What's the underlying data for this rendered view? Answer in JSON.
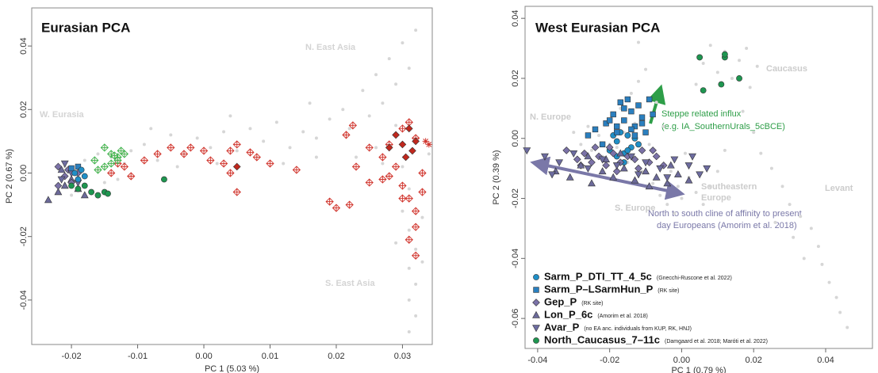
{
  "chart_data": [
    {
      "type": "scatter",
      "title": "Eurasian PCA",
      "x_label": "PC 1 (5.03 %)",
      "y_label": "PC 2 (0.67 %)",
      "xlim": [
        -0.026,
        0.0345
      ],
      "ylim": [
        -0.054,
        0.052
      ],
      "xticks": [
        -0.02,
        -0.01,
        {
          "value": 0,
          "label": "0.00"
        },
        0.01,
        0.02,
        0.03
      ],
      "yticks": [
        -0.04,
        -0.02,
        {
          "value": 0,
          "label": "0.00"
        },
        0.02,
        0.04
      ],
      "annotations": [
        {
          "text": "W. Eurasia",
          "color": "#d4d4d4"
        },
        {
          "text": "N. East Asia",
          "color": "#d4d4d4"
        },
        {
          "text": "S. East Asia",
          "color": "#d4d4d4"
        }
      ],
      "series": [
        {
          "color": "#d6d6d6",
          "marker": "dot",
          "x": [
            -0.021,
            -0.019,
            -0.018,
            -0.017,
            -0.016,
            -0.015,
            -0.014,
            -0.013,
            -0.012,
            -0.02,
            -0.016,
            -0.018,
            -0.011,
            -0.009,
            -0.007,
            -0.005,
            -0.003,
            -0.001,
            0.001,
            0.003,
            0.005,
            0.007,
            0.009,
            0.011,
            0.013,
            0.015,
            0.017,
            0.019,
            0.021,
            0.022,
            0.024,
            0.025,
            0.026,
            0.027,
            0.028,
            0.029,
            0.03,
            0.031,
            0.032,
            0.029,
            0.026,
            0.023,
            0.03,
            0.031,
            0.03,
            0.031,
            0.032,
            0.031,
            0.032,
            0.031,
            0.032,
            0.031,
            0.033,
            0.029,
            0.033,
            -0.004,
            0.002,
            0.008,
            0.012,
            0.017,
            0.027,
            0.034,
            -0.008,
            0.004,
            0.016
          ],
          "values": [
            0.002,
            -0.004,
            0.004,
            -0.006,
            0.001,
            -0.003,
            0.005,
            -0.002,
            0.003,
            -0.007,
            0.006,
            -0.001,
            0.007,
            0.009,
            0.004,
            0.012,
            0.006,
            0.011,
            0.008,
            0.013,
            0.007,
            0.014,
            0.01,
            0.016,
            0.008,
            0.013,
            0.011,
            0.017,
            0.02,
            0.014,
            0.026,
            0.018,
            0.031,
            0.022,
            0.036,
            0.028,
            0.041,
            0.033,
            0.045,
            0.015,
            0.008,
            0.005,
            0.002,
            -0.005,
            -0.012,
            -0.018,
            -0.024,
            -0.03,
            -0.035,
            -0.04,
            -0.045,
            -0.05,
            -0.028,
            -0.022,
            -0.014,
            0.002,
            0.003,
            0.005,
            0.003,
            0.005,
            0.003,
            0.006,
            0.014,
            0.018,
            0.022
          ]
        },
        {
          "color": "#d0342c",
          "marker": "diamond-cross",
          "x": [
            -0.014,
            -0.013,
            -0.011,
            -0.009,
            -0.007,
            -0.005,
            -0.003,
            -0.002,
            0.0,
            0.001,
            0.003,
            0.004,
            0.005,
            0.007,
            0.008,
            0.01,
            0.014,
            0.005,
            0.019,
            0.02,
            0.022,
            0.023,
            0.025,
            0.027,
            0.028,
            0.029,
            0.03,
            0.031,
            0.032,
            0.033,
            0.028,
            0.03,
            0.031,
            0.032,
            0.033,
            0.032,
            0.031,
            0.03,
            0.032,
            0.027,
            0.025,
            -0.012,
            0.004,
            0.0215,
            0.0225
          ],
          "values": [
            0.0,
            0.003,
            -0.001,
            0.004,
            0.006,
            0.008,
            0.006,
            0.008,
            0.007,
            0.004,
            0.003,
            0.007,
            0.009,
            0.0065,
            0.005,
            0.003,
            0.001,
            -0.006,
            -0.009,
            -0.011,
            -0.01,
            0.002,
            -0.003,
            0.005,
            -0.001,
            0.002,
            -0.004,
            -0.008,
            -0.012,
            -0.006,
            0.009,
            0.014,
            0.016,
            0.011,
            0.0,
            -0.017,
            -0.021,
            -0.008,
            -0.026,
            -0.002,
            0.008,
            0.002,
            0.0,
            0.012,
            0.015
          ]
        },
        {
          "color": "#3cb44b",
          "marker": "diamond-cross",
          "x": [
            -0.0165,
            -0.015,
            -0.014,
            -0.013,
            -0.012,
            -0.0125,
            -0.014,
            -0.0135,
            -0.015,
            -0.016,
            -0.013
          ],
          "values": [
            0.004,
            0.008,
            0.006,
            0.005,
            0.006,
            0.007,
            0.003,
            0.0055,
            0.002,
            0.001,
            0.004
          ]
        },
        {
          "color": "#c0281e",
          "marker": "diamond",
          "x": [
            0.029,
            0.03,
            0.031,
            0.0315,
            0.032,
            0.0305,
            0.005,
            0.028
          ],
          "values": [
            0.012,
            0.009,
            0.014,
            0.007,
            0.01,
            0.005,
            0.002,
            0.008
          ]
        },
        {
          "color": "#d0342c",
          "marker": "star",
          "x": [
            0.0335,
            0.034
          ],
          "values": [
            0.01,
            0.009
          ]
        },
        {
          "color": "#6c6a9a",
          "marker": "triangle-up",
          "x": [
            -0.0235,
            -0.022,
            -0.021,
            -0.02,
            -0.0215,
            -0.019,
            -0.018
          ],
          "values": [
            -0.0085,
            -0.006,
            -0.004,
            -0.002,
            0.001,
            -0.005,
            -0.007
          ]
        },
        {
          "color": "#7b72a8",
          "marker": "diamond",
          "x": [
            -0.022,
            -0.021,
            -0.0205,
            -0.02,
            -0.019,
            -0.022
          ],
          "values": [
            0.002,
            -0.001,
            0.001,
            -0.003,
            0,
            -0.004
          ]
        },
        {
          "color": "#6d6ca0",
          "marker": "triangle-down",
          "x": [
            -0.0215,
            -0.02,
            -0.019,
            -0.021
          ],
          "values": [
            -0.002,
            0.0,
            -0.003,
            0.003
          ]
        },
        {
          "color": "#2a7fbf",
          "marker": "square",
          "x": [
            -0.02,
            -0.019
          ],
          "values": [
            0.0015,
            0.002
          ]
        },
        {
          "color": "#1f8fc7",
          "marker": "circle",
          "x": [
            -0.0195,
            -0.0185,
            -0.018,
            -0.019
          ],
          "values": [
            0.0,
            0.001,
            -0.001,
            -0.002
          ]
        },
        {
          "color": "#1e9650",
          "marker": "circle",
          "x": [
            -0.02,
            -0.019,
            -0.018,
            -0.017,
            -0.016,
            -0.015,
            -0.0145,
            -0.006
          ],
          "values": [
            -0.004,
            -0.005,
            -0.004,
            -0.006,
            -0.007,
            -0.006,
            -0.0065,
            -0.002
          ]
        }
      ]
    },
    {
      "type": "scatter",
      "title": "West Eurasian PCA",
      "x_label": "PC 1 (0.79 %)",
      "y_label": "PC 2 (0.39 %)",
      "xlim": [
        -0.0435,
        0.053
      ],
      "ylim": [
        -0.07,
        0.044
      ],
      "xticks": [
        -0.04,
        -0.02,
        {
          "value": 0,
          "label": "0.00"
        },
        0.02,
        0.04
      ],
      "yticks": [
        -0.06,
        -0.04,
        -0.02,
        {
          "value": 0,
          "label": "0.00"
        },
        0.02,
        0.04
      ],
      "legend": "bottom-left",
      "annotations": [
        {
          "text": "N. Europe",
          "color": "#cccccc"
        },
        {
          "text": "Caucasus",
          "color": "#cccccc"
        },
        {
          "text": "Southeastern",
          "color": "#cccccc"
        },
        {
          "text": "Europe",
          "color": "#cccccc"
        },
        {
          "text": "S. Europe",
          "color": "#cccccc"
        },
        {
          "text": "Levant",
          "color": "#cccccc"
        },
        {
          "text": "Steppe related influx",
          "color": "#2e9e48"
        },
        {
          "text": "(e.g. IA_SouthernUrals_5cBCE)",
          "color": "#2e9e48"
        },
        {
          "text": "North to south cline of affinity to present",
          "color": "#7a78a8"
        },
        {
          "text": "day Europeans (Amorim et al. 2018)",
          "color": "#7a78a8"
        }
      ],
      "series": [
        {
          "color": "#d6d6d6",
          "marker": "dot",
          "x": [
            -0.03,
            -0.028,
            -0.026,
            -0.025,
            -0.023,
            -0.022,
            -0.021,
            -0.02,
            -0.019,
            -0.018,
            -0.017,
            -0.016,
            -0.015,
            -0.014,
            -0.013,
            -0.012,
            -0.011,
            -0.01,
            -0.009,
            -0.008,
            -0.007,
            -0.006,
            -0.005,
            -0.004,
            -0.003,
            -0.002,
            -0.001,
            0,
            0.002,
            0.004,
            0.006,
            0.008,
            0.01,
            0.004,
            0.006,
            0.008,
            0.01,
            0.012,
            0.014,
            0.016,
            0.018,
            0.019,
            0.021,
            0.017,
            0.02,
            0.022,
            0.025,
            0.028,
            0.03,
            0.033,
            0.036,
            0.038,
            0.039,
            0.041,
            0.043,
            0.044,
            0.046,
            0.034,
            0.031,
            0.026,
            -0.012,
            0.001,
            0.012
          ],
          "values": [
            0.002,
            -0.002,
            0.004,
            -0.004,
            0.001,
            -0.006,
            0.005,
            -0.002,
            0.008,
            -0.003,
            0.01,
            0.002,
            -0.008,
            0.015,
            0.005,
            0.019,
            -0.011,
            0.023,
            -0.002,
            -0.015,
            0.012,
            -0.019,
            0.004,
            -0.022,
            -0.011,
            -0.025,
            -0.016,
            -0.02,
            -0.013,
            -0.018,
            -0.022,
            -0.016,
            -0.011,
            0.018,
            0.025,
            0.031,
            0.022,
            0.029,
            0.02,
            0.026,
            0.03,
            0.017,
            0.024,
            0.009,
            0.002,
            -0.005,
            -0.01,
            -0.016,
            -0.022,
            -0.026,
            -0.03,
            -0.036,
            -0.042,
            -0.048,
            -0.053,
            -0.058,
            -0.063,
            -0.04,
            -0.033,
            -0.028,
            0.032,
            -0.005,
            -0.004
          ]
        },
        {
          "name": "Sarm_P_DTI_TT_4_5c",
          "reference": "(Gnecchi-Ruscone et al. 2022)",
          "color": "#1f8fc7",
          "marker": "circle",
          "x": [
            -0.02,
            -0.018,
            -0.017,
            -0.016,
            -0.015,
            -0.014,
            -0.013,
            -0.016,
            -0.018,
            -0.012,
            -0.019,
            -0.015
          ],
          "values": [
            -0.004,
            -0.001,
            0.002,
            -0.005,
            0.001,
            -0.003,
            0.0,
            -0.008,
            -0.006,
            -0.002,
            0.001,
            -0.004
          ]
        },
        {
          "name": "Sarm_P–LSarmHun_P",
          "reference": "(RK site)",
          "color": "#2a7fbf",
          "marker": "square",
          "x": [
            -0.026,
            -0.024,
            -0.022,
            -0.021,
            -0.019,
            -0.018,
            -0.017,
            -0.016,
            -0.015,
            -0.014,
            -0.013,
            -0.012,
            -0.011,
            -0.01,
            -0.009,
            -0.02,
            -0.016,
            -0.013,
            -0.011,
            -0.008,
            -0.018,
            -0.014
          ],
          "values": [
            0.001,
            0.003,
            -0.002,
            0.005,
            0.008,
            0.002,
            0.012,
            0.006,
            0.013,
            0.009,
            0.004,
            0.011,
            0.007,
            0.002,
            0.013,
            0.006,
            0.01,
            0.001,
            0.005,
            0.008,
            0.004,
            0.003
          ]
        },
        {
          "name": "Gep_P",
          "reference": "(RK site)",
          "color": "#7b72a8",
          "marker": "diamond",
          "x": [
            -0.032,
            -0.029,
            -0.027,
            -0.025,
            -0.023,
            -0.021,
            -0.019,
            -0.017,
            -0.015,
            -0.013,
            -0.011,
            -0.009,
            -0.007,
            -0.005,
            -0.024,
            -0.018,
            -0.012,
            -0.008,
            -0.028,
            -0.02
          ],
          "values": [
            -0.004,
            -0.007,
            -0.005,
            -0.008,
            -0.006,
            -0.009,
            -0.005,
            -0.008,
            -0.006,
            -0.007,
            -0.004,
            -0.008,
            -0.006,
            -0.009,
            -0.003,
            -0.011,
            -0.01,
            -0.004,
            -0.009,
            -0.003
          ]
        },
        {
          "name": "Lon_P_6c",
          "reference": "(Amorim et al. 2018)",
          "color": "#6c6a9a",
          "marker": "triangle-up",
          "x": [
            -0.035,
            -0.031,
            -0.028,
            -0.025,
            -0.022,
            -0.019,
            -0.016,
            -0.013,
            -0.01,
            -0.007,
            -0.004,
            -0.001,
            0.002,
            -0.026,
            -0.017,
            -0.009,
            -0.003,
            -0.021
          ],
          "values": [
            -0.011,
            -0.013,
            -0.009,
            -0.015,
            -0.011,
            -0.013,
            -0.01,
            -0.014,
            -0.011,
            -0.013,
            -0.015,
            -0.012,
            -0.014,
            -0.006,
            -0.005,
            -0.016,
            -0.009,
            -0.007
          ]
        },
        {
          "name": "Avar_P",
          "reference": "(no EA anc. individuals from KUP, RK, HNJ)",
          "color": "#6d6ca0",
          "marker": "triangle-down",
          "x": [
            -0.043,
            -0.038,
            -0.034,
            -0.03,
            -0.026,
            -0.022,
            -0.018,
            -0.014,
            -0.01,
            -0.006,
            -0.002,
            0.002,
            0.005,
            0.007,
            -0.036,
            -0.012,
            -0.004,
            0.003
          ],
          "values": [
            -0.004,
            -0.006,
            -0.008,
            -0.005,
            -0.01,
            -0.007,
            -0.009,
            -0.006,
            -0.008,
            -0.01,
            -0.007,
            -0.009,
            -0.012,
            -0.01,
            -0.012,
            -0.012,
            -0.013,
            -0.006
          ]
        },
        {
          "name": "North_Caucasus_7–11c",
          "reference": "(Damgaard et al. 2018; Maróti et al. 2022)",
          "color": "#1e9650",
          "marker": "circle",
          "x": [
            0.005,
            0.006,
            0.011,
            0.012,
            0.012,
            0.016
          ],
          "values": [
            0.027,
            0.016,
            0.018,
            0.027,
            0.028,
            0.02
          ]
        }
      ]
    }
  ]
}
